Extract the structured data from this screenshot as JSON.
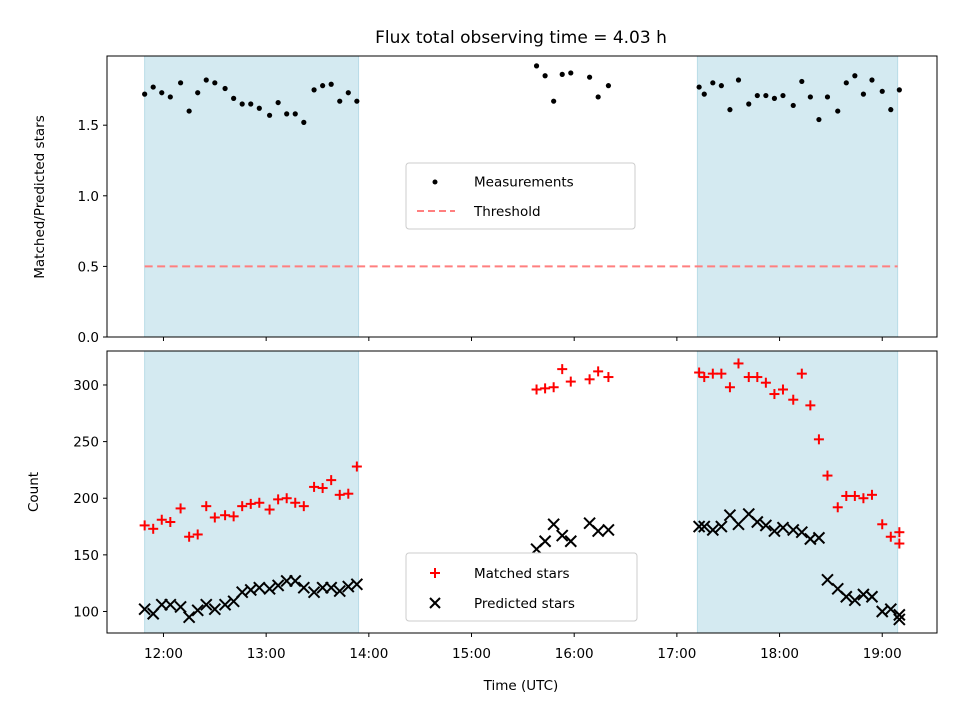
{
  "chart_data": [
    {
      "type": "scatter",
      "title": "Flux total observing time = 4.03 h",
      "xlabel": "",
      "ylabel": "Matched/Predicted stars",
      "xlim": [
        "11:27",
        "19:32"
      ],
      "ylim": [
        0,
        1.99
      ],
      "yticks": [
        0,
        0.5,
        1,
        1.5
      ],
      "ytick_labels": [
        "0.0",
        "0.5",
        "1.0",
        "1.5"
      ],
      "xticks": [
        "12:00",
        "13:00",
        "14:00",
        "15:00",
        "16:00",
        "17:00",
        "18:00",
        "19:00"
      ],
      "x_tick_labels_shown": false,
      "shaded_intervals": [
        [
          "11:49",
          "13:54"
        ],
        [
          "17:12",
          "19:09"
        ]
      ],
      "shade_color": "#d4eaf1",
      "legend_position": "center",
      "series": [
        {
          "name": "Measurements",
          "marker": "dot",
          "color": "#000000",
          "x": [
            "11:49",
            "11:54",
            "11:59",
            "12:04",
            "12:10",
            "12:15",
            "12:20",
            "12:25",
            "12:30",
            "12:36",
            "12:41",
            "12:46",
            "12:51",
            "12:56",
            "13:02",
            "13:07",
            "13:12",
            "13:17",
            "13:22",
            "13:28",
            "13:33",
            "13:38",
            "13:43",
            "13:48",
            "13:53",
            "15:38",
            "15:43",
            "15:48",
            "15:53",
            "15:58",
            "16:09",
            "16:14",
            "16:20",
            "17:13",
            "17:16",
            "17:21",
            "17:26",
            "17:31",
            "17:36",
            "17:42",
            "17:47",
            "17:52",
            "17:57",
            "18:02",
            "18:08",
            "18:13",
            "18:18",
            "18:23",
            "18:28",
            "18:34",
            "18:39",
            "18:44",
            "18:49",
            "18:54",
            "19:00",
            "19:05",
            "19:10"
          ],
          "y": [
            1.72,
            1.77,
            1.73,
            1.7,
            1.8,
            1.6,
            1.73,
            1.82,
            1.8,
            1.76,
            1.69,
            1.65,
            1.65,
            1.62,
            1.57,
            1.66,
            1.58,
            1.58,
            1.52,
            1.75,
            1.78,
            1.79,
            1.67,
            1.73,
            1.67,
            1.92,
            1.85,
            1.67,
            1.86,
            1.87,
            1.84,
            1.7,
            1.78,
            1.77,
            1.72,
            1.8,
            1.78,
            1.61,
            1.82,
            1.65,
            1.71,
            1.71,
            1.69,
            1.71,
            1.64,
            1.81,
            1.7,
            1.54,
            1.7,
            1.6,
            1.8,
            1.85,
            1.72,
            1.82,
            1.74,
            1.61,
            1.75
          ]
        },
        {
          "name": "Threshold",
          "marker": "dashed-line",
          "color": "#ff7f7f",
          "x": [
            "11:49",
            "19:09"
          ],
          "y": [
            0.5,
            0.5
          ]
        }
      ]
    },
    {
      "type": "scatter",
      "title": "",
      "xlabel": "Time (UTC)",
      "ylabel": "Count",
      "xlim": [
        "11:27",
        "19:32"
      ],
      "ylim": [
        81,
        330
      ],
      "yticks": [
        100,
        150,
        200,
        250,
        300
      ],
      "ytick_labels": [
        "100",
        "150",
        "200",
        "250",
        "300"
      ],
      "xticks": [
        "12:00",
        "13:00",
        "14:00",
        "15:00",
        "16:00",
        "17:00",
        "18:00",
        "19:00"
      ],
      "x_tick_labels_shown": true,
      "shaded_intervals": [
        [
          "11:49",
          "13:54"
        ],
        [
          "17:12",
          "19:09"
        ]
      ],
      "shade_color": "#d4eaf1",
      "legend_position": "lower center",
      "series": [
        {
          "name": "Matched stars",
          "marker": "plus",
          "color": "#ff0000",
          "x": [
            "11:49",
            "11:54",
            "11:59",
            "12:04",
            "12:10",
            "12:15",
            "12:20",
            "12:25",
            "12:30",
            "12:36",
            "12:41",
            "12:46",
            "12:51",
            "12:56",
            "13:02",
            "13:07",
            "13:12",
            "13:17",
            "13:22",
            "13:28",
            "13:33",
            "13:38",
            "13:43",
            "13:48",
            "13:53",
            "15:38",
            "15:43",
            "15:48",
            "15:53",
            "15:58",
            "16:09",
            "16:14",
            "16:20",
            "17:13",
            "17:16",
            "17:21",
            "17:26",
            "17:31",
            "17:36",
            "17:42",
            "17:47",
            "17:52",
            "17:57",
            "18:02",
            "18:08",
            "18:13",
            "18:18",
            "18:23",
            "18:28",
            "18:34",
            "18:39",
            "18:44",
            "18:49",
            "18:54",
            "19:00",
            "19:05",
            "19:10"
          ],
          "y": [
            176,
            173,
            181,
            179,
            191,
            166,
            168,
            193,
            183,
            185,
            184,
            193,
            195,
            196,
            190,
            199,
            200,
            196,
            193,
            210,
            209,
            216,
            203,
            204,
            228,
            296,
            297,
            298,
            314,
            303,
            305,
            312,
            307,
            311,
            307,
            310,
            310,
            298,
            319,
            307,
            307,
            302,
            292,
            296,
            287,
            310,
            282,
            252,
            220,
            192,
            202,
            202,
            200,
            203,
            177,
            166,
            160
          ]
        },
        {
          "name": "Predicted stars",
          "marker": "x",
          "color": "#000000",
          "x": [
            "11:49",
            "11:54",
            "11:59",
            "12:04",
            "12:10",
            "12:15",
            "12:20",
            "12:25",
            "12:30",
            "12:36",
            "12:41",
            "12:46",
            "12:51",
            "12:56",
            "13:02",
            "13:07",
            "13:12",
            "13:17",
            "13:22",
            "13:28",
            "13:33",
            "13:38",
            "13:43",
            "13:48",
            "13:53",
            "15:38",
            "15:43",
            "15:48",
            "15:53",
            "15:58",
            "16:09",
            "16:14",
            "16:20",
            "17:13",
            "17:16",
            "17:21",
            "17:26",
            "17:31",
            "17:36",
            "17:42",
            "17:47",
            "17:52",
            "17:57",
            "18:02",
            "18:08",
            "18:13",
            "18:18",
            "18:23",
            "18:28",
            "18:34",
            "18:39",
            "18:44",
            "18:49",
            "18:54",
            "19:00",
            "19:05",
            "19:10"
          ],
          "y": [
            102,
            98,
            106,
            106,
            104,
            95,
            101,
            106,
            102,
            106,
            109,
            117,
            119,
            121,
            120,
            123,
            127,
            127,
            121,
            117,
            121,
            121,
            118,
            122,
            124,
            155,
            162,
            177,
            167,
            162,
            178,
            171,
            172,
            175,
            175,
            172,
            175,
            185,
            177,
            186,
            179,
            176,
            171,
            174,
            172,
            170,
            164,
            165,
            128,
            120,
            113,
            110,
            115,
            113,
            100,
            102,
            93
          ]
        },
        {
          "name": "",
          "marker": "plus",
          "color": "#ff0000",
          "x": [
            "19:10"
          ],
          "y": [
            170
          ]
        },
        {
          "name": "",
          "marker": "x",
          "color": "#000000",
          "x": [
            "19:10"
          ],
          "y": [
            97
          ]
        }
      ]
    }
  ]
}
